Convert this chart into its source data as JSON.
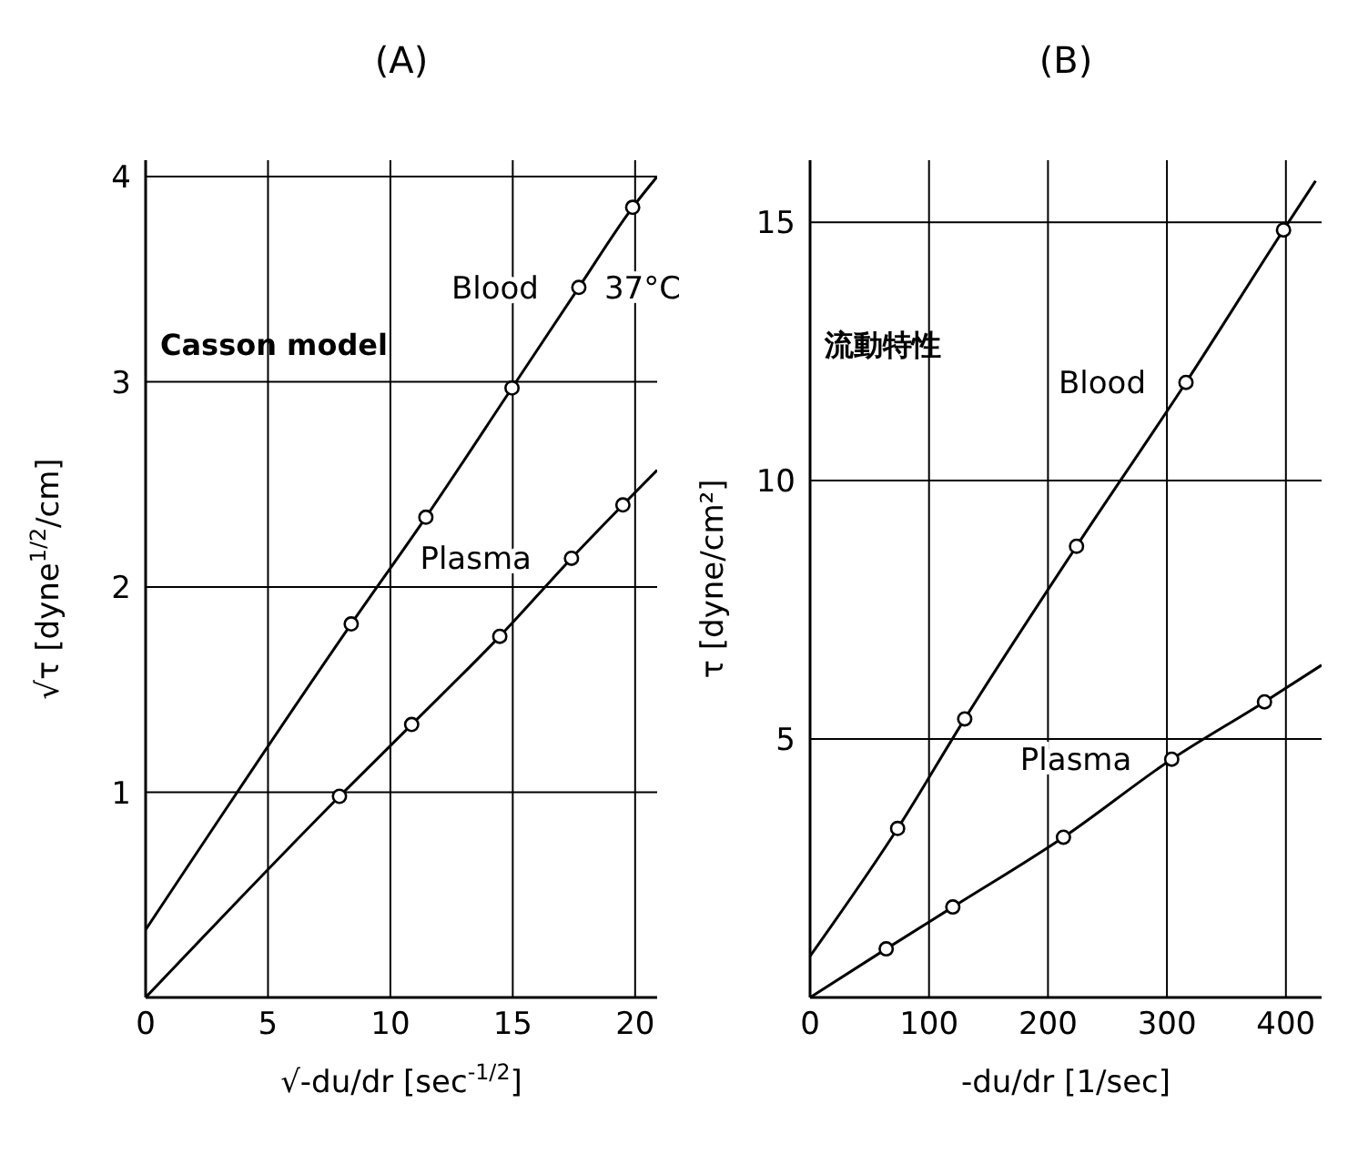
{
  "chart_data": [
    {
      "type": "scatter",
      "title": "(A)",
      "xlabel": "√-du/dr  [sec$^{-1/2}$]",
      "ylabel": "√τ  [dyne$^{1/2}$/cm]",
      "xlim": [
        0,
        20.9
      ],
      "ylim": [
        0,
        4.08
      ],
      "xticks": [
        0,
        5,
        10,
        15,
        20
      ],
      "yticks": [
        {
          "value": 0,
          "label": null
        },
        1,
        2,
        3,
        4
      ],
      "grid": true,
      "series": [
        {
          "type": "line",
          "name": "Blood",
          "color": "#000000",
          "marker": "none",
          "x": [
            0,
            8.4,
            11.45,
            14.97,
            17.7,
            19.9,
            20.9
          ],
          "values": [
            0.33,
            1.82,
            2.34,
            2.97,
            3.46,
            3.85,
            4.0
          ]
        },
        {
          "color": "#000000",
          "marker": "circle",
          "x": [
            8.4,
            11.45,
            14.97,
            17.7,
            19.9
          ],
          "values": [
            1.82,
            2.34,
            2.97,
            3.46,
            3.85
          ]
        },
        {
          "type": "line",
          "name": "Plasma",
          "color": "#000000",
          "marker": "none",
          "x": [
            0,
            7.92,
            10.87,
            14.47,
            17.4,
            19.5,
            20.9
          ],
          "values": [
            0,
            0.98,
            1.33,
            1.76,
            2.14,
            2.4,
            2.57
          ]
        },
        {
          "color": "#000000",
          "marker": "circle",
          "x": [
            7.92,
            10.87,
            14.47,
            17.4,
            19.5
          ],
          "values": [
            0.98,
            1.33,
            1.76,
            2.14,
            2.4
          ]
        }
      ],
      "annotations": [
        {
          "text": "37°C",
          "x": 17.7,
          "y": 3.46
        },
        "Casson model"
      ]
    },
    {
      "type": "scatter",
      "title": "(B)",
      "xlabel": "-du/dr  [1/sec]",
      "ylabel": "τ  [dyne/cm²]",
      "xlim": [
        0,
        430
      ],
      "ylim": [
        0,
        16.2
      ],
      "xticks": [
        0,
        100,
        200,
        300,
        400
      ],
      "yticks": [
        {
          "value": 0,
          "label": null
        },
        5,
        10,
        15
      ],
      "grid": true,
      "series": [
        {
          "type": "line",
          "name": "Blood",
          "color": "#000000",
          "marker": "none",
          "x": [
            0,
            73.6,
            130,
            224,
            316,
            398,
            425
          ],
          "values": [
            0.8,
            3.27,
            5.39,
            8.73,
            11.9,
            14.85,
            15.8
          ]
        },
        {
          "color": "#000000",
          "marker": "circle",
          "x": [
            73.6,
            130,
            224,
            316,
            398
          ],
          "values": [
            3.27,
            5.39,
            8.73,
            11.9,
            14.85
          ]
        },
        {
          "type": "line",
          "name": "Plasma",
          "color": "#000000",
          "marker": "none",
          "x": [
            0,
            64,
            120,
            213,
            304,
            382,
            430
          ],
          "values": [
            0,
            0.94,
            1.75,
            3.1,
            4.61,
            5.72,
            6.43
          ]
        },
        {
          "color": "#000000",
          "marker": "circle",
          "x": [
            64,
            120,
            213,
            304,
            382
          ],
          "values": [
            0.94,
            1.75,
            3.1,
            4.61,
            5.72
          ]
        }
      ],
      "annotations": [
        "流動特性"
      ]
    }
  ]
}
